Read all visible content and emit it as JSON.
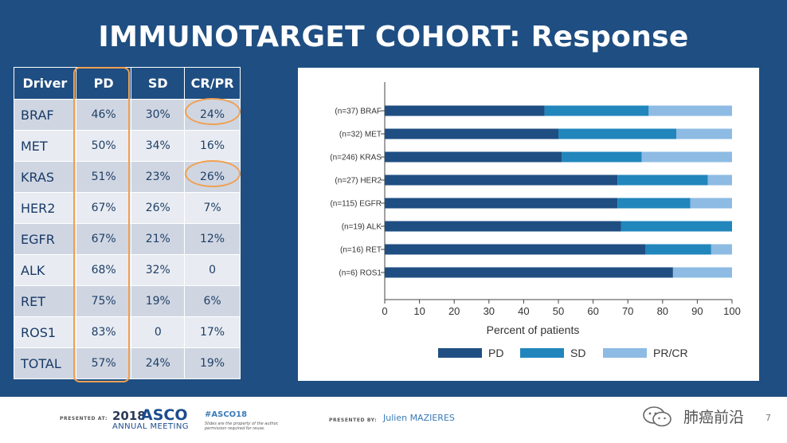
{
  "title": "IMMUNOTARGET COHORT: Response",
  "table": {
    "headers": [
      "Driver",
      "PD",
      "SD",
      "CR/PR"
    ],
    "rows": [
      {
        "driver": "BRAF",
        "pd": "46%",
        "sd": "30%",
        "crpr": "24%"
      },
      {
        "driver": "MET",
        "pd": "50%",
        "sd": "34%",
        "crpr": "16%"
      },
      {
        "driver": "KRAS",
        "pd": "51%",
        "sd": "23%",
        "crpr": "26%"
      },
      {
        "driver": "HER2",
        "pd": "67%",
        "sd": "26%",
        "crpr": "7%"
      },
      {
        "driver": "EGFR",
        "pd": "67%",
        "sd": "21%",
        "crpr": "12%"
      },
      {
        "driver": "ALK",
        "pd": "68%",
        "sd": "32%",
        "crpr": "0"
      },
      {
        "driver": "RET",
        "pd": "75%",
        "sd": "19%",
        "crpr": "6%"
      },
      {
        "driver": "ROS1",
        "pd": "83%",
        "sd": "0",
        "crpr": "17%"
      },
      {
        "driver": "TOTAL",
        "pd": "57%",
        "sd": "24%",
        "crpr": "19%"
      }
    ]
  },
  "chart_data": {
    "type": "bar",
    "orientation": "horizontal",
    "stacked": true,
    "categories": [
      "(n=37) BRAF",
      "(n=32) MET",
      "(n=246) KRAS",
      "(n=27) HER2",
      "(n=115) EGFR",
      "(n=19) ALK",
      "(n=16) RET",
      "(n=6) ROS1"
    ],
    "series": [
      {
        "name": "PD",
        "color": "#1f4e82",
        "values": [
          46,
          50,
          51,
          67,
          67,
          68,
          75,
          83
        ]
      },
      {
        "name": "SD",
        "color": "#2186bc",
        "values": [
          30,
          34,
          23,
          26,
          21,
          32,
          19,
          0
        ]
      },
      {
        "name": "PR/CR",
        "color": "#8dbbe3",
        "values": [
          24,
          16,
          26,
          7,
          12,
          0,
          6,
          17
        ]
      }
    ],
    "xlabel": "Percent of patients",
    "xlim": [
      0,
      100
    ],
    "xticks": [
      "0",
      "10",
      "20",
      "30",
      "40",
      "50",
      "60",
      "70",
      "80",
      "90",
      "100"
    ],
    "grid": false,
    "legend": "bottom"
  },
  "footer": {
    "presented_at": "PRESENTED AT:",
    "asco_year": "2018",
    "asco_name": "ASCO",
    "asco_meeting": "ANNUAL MEETING",
    "hashtag": "#ASCO18",
    "disclaimer": "Slides are the property of the author, permission required for reuse.",
    "presented_by": "PRESENTED BY:",
    "presenter": "Julien MAZIERES",
    "watermark": "肺癌前沿",
    "page_number": "7"
  }
}
